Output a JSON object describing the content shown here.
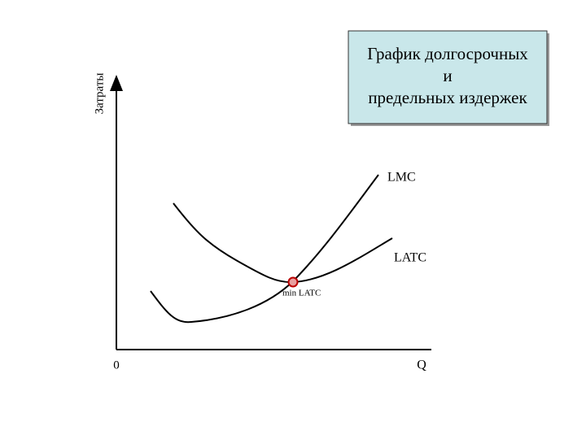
{
  "title": {
    "lines": [
      "График долгосрочных",
      "и",
      "предельных издержек"
    ]
  },
  "axes": {
    "y_label": "Затраты",
    "x_label": "Q",
    "origin": "0"
  },
  "curves": {
    "lmc": "LMC",
    "latc": "LATC"
  },
  "point": {
    "label": "min LATC"
  }
}
